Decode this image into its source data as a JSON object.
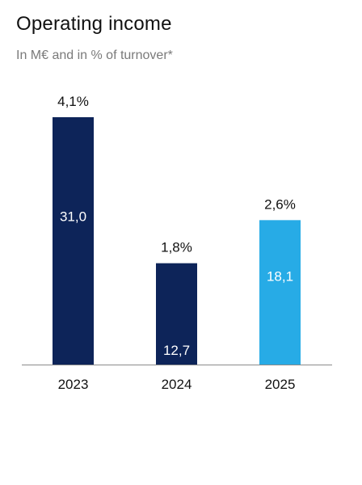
{
  "chart_data": {
    "type": "bar",
    "title": "Operating income",
    "subtitle": "In M€ and in % of turnover*",
    "categories": [
      "2023",
      "2024",
      "2025"
    ],
    "values": [
      31.0,
      12.7,
      18.1
    ],
    "value_labels": [
      "31,0",
      "12,7",
      "18,1"
    ],
    "percent_labels": [
      "4,1%",
      "1,8%",
      "2,6%"
    ],
    "bar_colors": [
      "#0d2459",
      "#0d2459",
      "#27abe6"
    ],
    "ylim": [
      0,
      31.0
    ],
    "grid": false
  }
}
